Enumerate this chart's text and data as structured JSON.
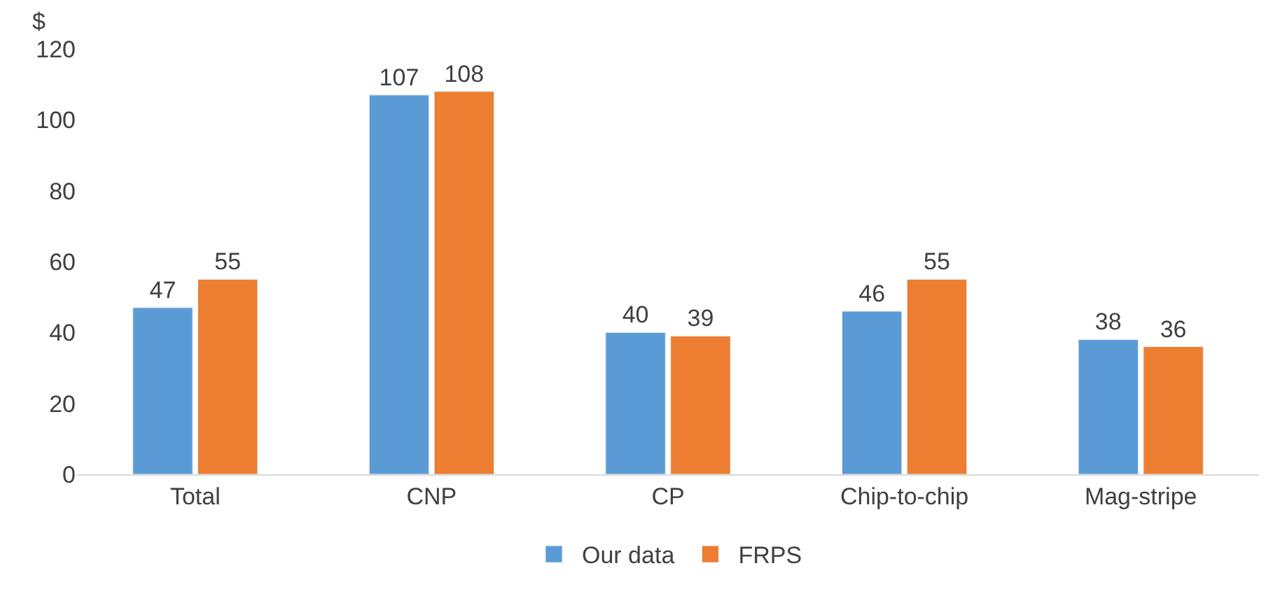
{
  "chart_data": {
    "type": "bar",
    "ylabel": "$",
    "categories": [
      "Total",
      "CNP",
      "CP",
      "Chip-to-chip",
      "Mag-stripe"
    ],
    "series": [
      {
        "name": "Our data",
        "color": "#5b9bd5",
        "values": [
          47,
          107,
          40,
          46,
          38
        ]
      },
      {
        "name": "FRPS",
        "color": "#ed7d31",
        "values": [
          55,
          108,
          39,
          55,
          36
        ]
      }
    ],
    "ylim": [
      0,
      120
    ],
    "yticks": [
      0,
      20,
      40,
      60,
      80,
      100,
      120
    ],
    "data_labels": true,
    "grid": false,
    "legend": "bottom"
  }
}
